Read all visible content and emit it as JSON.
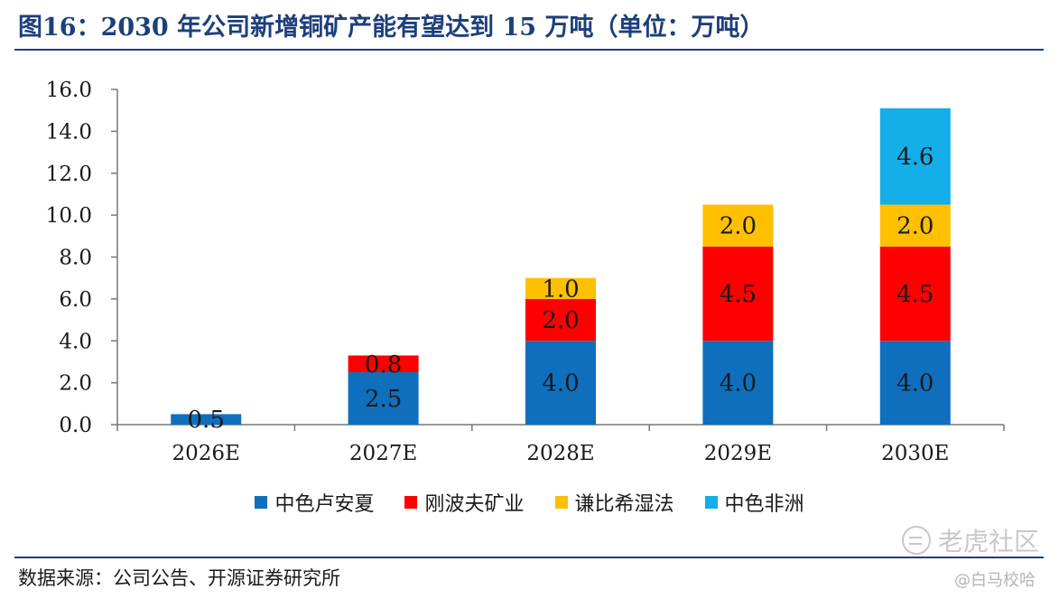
{
  "title": "图16：2030 年公司新增铜矿产能有望达到 15 万吨（单位：万吨）",
  "source": "数据来源：公司公告、开源证券研究所",
  "watermark": {
    "brand": "老虎社区",
    "handle": "@白马校哈"
  },
  "colors": {
    "title": "#1d3f7c",
    "s1": "#0f6fbd",
    "s2": "#ff0000",
    "s3": "#ffc000",
    "s4": "#14aee8"
  },
  "chart_data": {
    "type": "bar",
    "stacked": true,
    "title": "2030 年公司新增铜矿产能有望达到 15 万吨（单位：万吨）",
    "xlabel": "",
    "ylabel": "",
    "categories": [
      "2026E",
      "2027E",
      "2028E",
      "2029E",
      "2030E"
    ],
    "ylim": [
      0,
      16
    ],
    "yticks": [
      "0.0",
      "2.0",
      "4.0",
      "6.0",
      "8.0",
      "10.0",
      "12.0",
      "14.0",
      "16.0"
    ],
    "series": [
      {
        "name": "中色卢安夏",
        "color": "#0f6fbd",
        "values": [
          0.5,
          2.5,
          4.0,
          4.0,
          4.0
        ],
        "labels": [
          "0.5",
          "2.5",
          "4.0",
          "4.0",
          "4.0"
        ]
      },
      {
        "name": "刚波夫矿业",
        "color": "#ff0000",
        "values": [
          0,
          0.8,
          2.0,
          4.5,
          4.5
        ],
        "labels": [
          "",
          "0.8",
          "2.0",
          "4.5",
          "4.5"
        ]
      },
      {
        "name": "谦比希湿法",
        "color": "#ffc000",
        "values": [
          0,
          0,
          1.0,
          2.0,
          2.0
        ],
        "labels": [
          "",
          "",
          "1.0",
          "2.0",
          "2.0"
        ]
      },
      {
        "name": "中色非洲",
        "color": "#14aee8",
        "values": [
          0,
          0,
          0,
          0,
          4.6
        ],
        "labels": [
          "",
          "",
          "",
          "",
          "4.6"
        ]
      }
    ],
    "legend_position": "bottom"
  }
}
